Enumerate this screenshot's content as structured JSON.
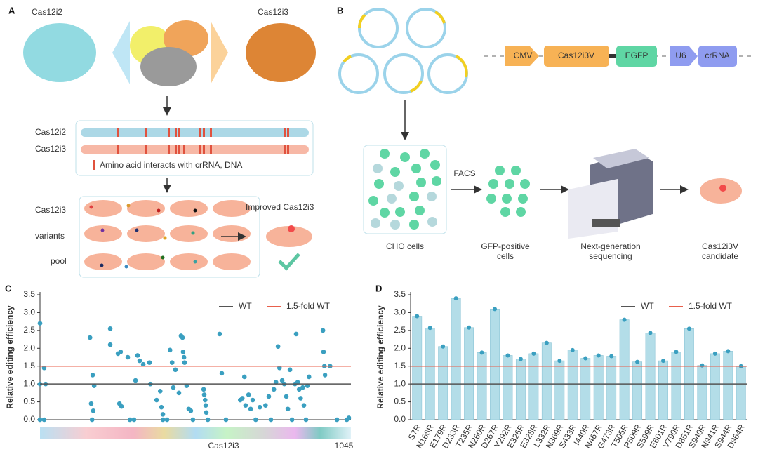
{
  "panel_a": {
    "label": "A",
    "protein_left": "Cas12i2",
    "protein_right": "Cas12i3",
    "seq_rows": [
      "Cas12i2",
      "Cas12i3"
    ],
    "legend": "Amino acid interacts with crRNA, DNA",
    "pool_rows": [
      "Cas12i3",
      "variants",
      "pool"
    ],
    "result": "Improved Cas12i3"
  },
  "panel_b": {
    "label": "B",
    "construct": [
      "CMV",
      "Cas12i3V",
      "EGFP",
      "U6",
      "crRNA"
    ],
    "facs": "FACS",
    "steps": [
      [
        "CHO cells"
      ],
      [
        "GFP-positive",
        "cells"
      ],
      [
        "Next-generation",
        "sequencing"
      ],
      [
        "Cas12i3V",
        "candidate"
      ]
    ]
  },
  "chart_data": [
    {
      "type": "scatter",
      "panel_label": "C",
      "y_label": "Relative editing efficiency",
      "x_label": "Cas12i3",
      "color": "#3a9fc0",
      "x": [
        0,
        0,
        0,
        14,
        14,
        19,
        168,
        172,
        175,
        177,
        179,
        182,
        236,
        236,
        262,
        267,
        271,
        274,
        295,
        302,
        316,
        321,
        328,
        335,
        347,
        368,
        371,
        392,
        404,
        408,
        413,
        413,
        427,
        437,
        444,
        448,
        455,
        467,
        474,
        479,
        481,
        484,
        486,
        493,
        500,
        507,
        514,
        550,
        552,
        555,
        557,
        559,
        564,
        604,
        611,
        625,
        673,
        680,
        687,
        691,
        701,
        708,
        715,
        725,
        739,
        758,
        769,
        776,
        786,
        793,
        800,
        805,
        814,
        821,
        828,
        833,
        840,
        847,
        857,
        861,
        866,
        871,
        876,
        883,
        887,
        894,
        899,
        904,
        951,
        953,
        956,
        958,
        975,
        998,
        1031,
        1038
      ],
      "values": [
        2.7,
        0.0,
        1.0,
        1.45,
        0.0,
        1.0,
        2.3,
        0.45,
        0.0,
        1.25,
        0.25,
        0.95,
        2.55,
        2.1,
        1.85,
        0.45,
        1.9,
        0.37,
        1.75,
        0.0,
        0.0,
        1.1,
        1.8,
        1.65,
        1.55,
        1.6,
        1.0,
        0.55,
        0.8,
        0.35,
        0.15,
        0.0,
        0.0,
        1.95,
        1.6,
        0.9,
        1.4,
        0.75,
        2.35,
        2.3,
        1.9,
        1.75,
        1.6,
        0.95,
        0.3,
        0.25,
        0.0,
        0.85,
        0.7,
        0.55,
        0.4,
        0.2,
        0.0,
        2.4,
        1.3,
        0.0,
        0.55,
        0.6,
        1.2,
        0.4,
        0.7,
        0.3,
        0.55,
        0.0,
        0.35,
        0.4,
        0.65,
        0.0,
        0.85,
        1.05,
        2.05,
        1.45,
        1.1,
        1.0,
        0.65,
        0.3,
        1.4,
        0.0,
        1.0,
        2.4,
        1.05,
        0.85,
        0.6,
        0.9,
        0.4,
        0.0,
        0.95,
        1.2,
        2.5,
        1.9,
        1.5,
        1.25,
        1.5,
        0.0,
        0.0,
        0.05
      ],
      "xlim": [
        0,
        1045
      ],
      "xticks": [
        1045
      ],
      "ylim": [
        0,
        3.5
      ],
      "yticks": [
        {
          "value": 0,
          "label": "0.0"
        },
        0.5,
        {
          "value": 1,
          "label": "1.0"
        },
        1.5,
        {
          "value": 2,
          "label": "2.0"
        },
        2.5,
        {
          "value": 3,
          "label": "3.0"
        },
        3.5
      ],
      "reference_lines": [
        {
          "name": "WT",
          "value": 1,
          "color": "#555555"
        },
        {
          "name": "1.5-fold WT",
          "value": 1.5,
          "color": "#e8604c"
        }
      ]
    },
    {
      "type": "bar",
      "panel_label": "D",
      "y_label": "Relative editing efficiency",
      "color": "#b3dde8",
      "categories": [
        "S7R",
        "N168R",
        "E179R",
        "D233R",
        "T235R",
        "N260R",
        "D267R",
        "Y292R",
        "E326R",
        "E328R",
        "L332R",
        "N369R",
        "S433R",
        "I440R",
        "N467R",
        "G473R",
        "T505R",
        "P509R",
        "S599R",
        "E601R",
        "V790R",
        "D851R",
        "S940R",
        "N941R",
        "S944R",
        "D964R"
      ],
      "values": [
        2.9,
        2.57,
        2.05,
        3.4,
        2.58,
        1.88,
        3.1,
        1.8,
        1.7,
        1.85,
        2.15,
        1.65,
        1.95,
        1.72,
        1.8,
        1.78,
        2.8,
        1.62,
        2.43,
        1.65,
        1.9,
        2.55,
        1.52,
        1.85,
        1.92,
        1.5
      ],
      "ylim": [
        0,
        3.5
      ],
      "yticks": [
        {
          "value": 0,
          "label": "0.0"
        },
        0.5,
        {
          "value": 1,
          "label": "1.0"
        },
        1.5,
        {
          "value": 2,
          "label": "2.0"
        },
        2.5,
        {
          "value": 3,
          "label": "3.0"
        },
        3.5
      ],
      "reference_lines": [
        {
          "name": "WT",
          "value": 1,
          "color": "#555555"
        },
        {
          "name": "1.5-fold WT",
          "value": 1.5,
          "color": "#e8604c"
        }
      ]
    }
  ]
}
